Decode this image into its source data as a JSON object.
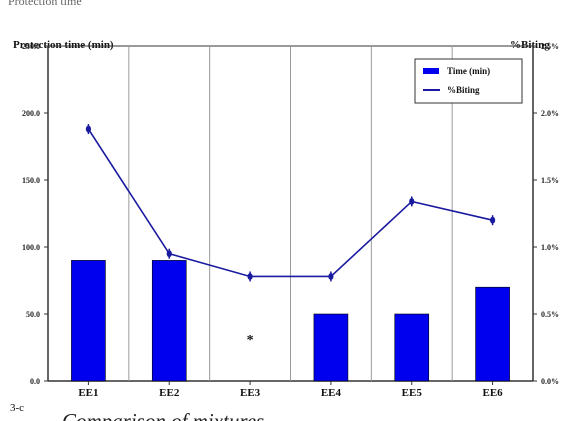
{
  "top_fragment": "Protection time",
  "panel_label": "3-c",
  "caption": "Comparison of mixtures",
  "colors": {
    "bar": "#0000ee",
    "line": "#1a1aa0",
    "axis": "#333333",
    "grid": "#9a9a9a"
  },
  "chart_data": {
    "type": "bar",
    "categories": [
      "EE1",
      "EE2",
      "EE3",
      "EE4",
      "EE5",
      "EE6"
    ],
    "y_left": {
      "label": "Protection time (min)",
      "range": [
        0,
        250
      ],
      "ticks": [
        "0.0",
        "50.0",
        "100.0",
        "150.0",
        "200.0",
        "250.0"
      ]
    },
    "y_right": {
      "label": "%Biting",
      "range": [
        0,
        2.5
      ],
      "ticks": [
        "0.0%",
        "0.5%",
        "1.0%",
        "1.5%",
        "2.0%",
        "2.5%"
      ]
    },
    "series": [
      {
        "name": "Time (min)",
        "type": "bar",
        "axis": "left",
        "values": [
          90,
          90,
          0,
          50,
          50,
          70
        ]
      },
      {
        "name": "%Biting",
        "type": "line",
        "axis": "right",
        "values": [
          1.88,
          0.95,
          0.78,
          0.78,
          1.34,
          1.2
        ]
      }
    ],
    "annotations": [
      {
        "category": "EE3",
        "text": "*"
      }
    ],
    "legend_position": "top-right"
  }
}
